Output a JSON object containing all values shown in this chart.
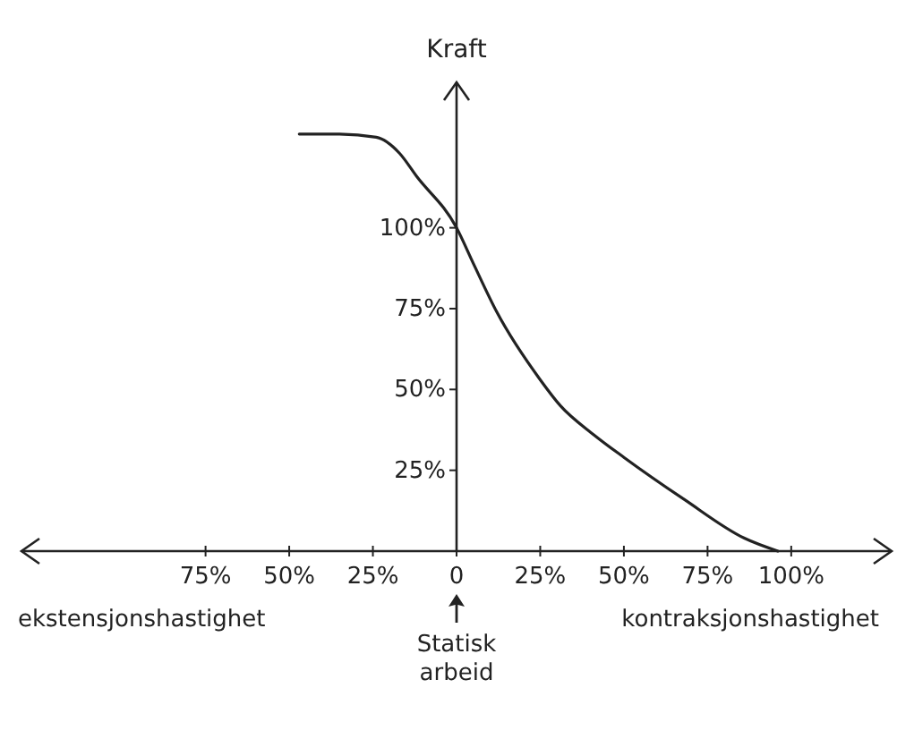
{
  "chart_data": {
    "type": "line",
    "ylabel": "Kraft",
    "x": [
      -47,
      -35,
      -24,
      -17,
      -12,
      0,
      5,
      12,
      25,
      31,
      41,
      50,
      68,
      86,
      96
    ],
    "series": [
      {
        "color": "#222222",
        "values": [
          129,
          129,
          128,
          123,
          116,
          100,
          89,
          74,
          53,
          45,
          36,
          29,
          16,
          4,
          0
        ]
      }
    ],
    "xlim": [
      -130,
      130
    ],
    "ylim": [
      0,
      145
    ],
    "xticks": [
      {
        "value": -75,
        "label": "75%"
      },
      {
        "value": -50,
        "label": "50%"
      },
      {
        "value": -25,
        "label": "25%"
      },
      {
        "value": 0,
        "label": "0"
      },
      {
        "value": 25,
        "label": "25%"
      },
      {
        "value": 50,
        "label": "50%"
      },
      {
        "value": 75,
        "label": "75%"
      },
      {
        "value": 100,
        "label": "100%"
      }
    ],
    "yticks": [
      {
        "value": 25,
        "label": "25%"
      },
      {
        "value": 50,
        "label": "50%"
      },
      {
        "value": 75,
        "label": "75%"
      },
      {
        "value": 100,
        "label": "100%"
      }
    ],
    "grid": false,
    "marker": "none",
    "line_style": "solid",
    "annotations": [
      "ekstensjonshastighet",
      "kontraksjonshastighet",
      "Statisk arbeid"
    ]
  }
}
